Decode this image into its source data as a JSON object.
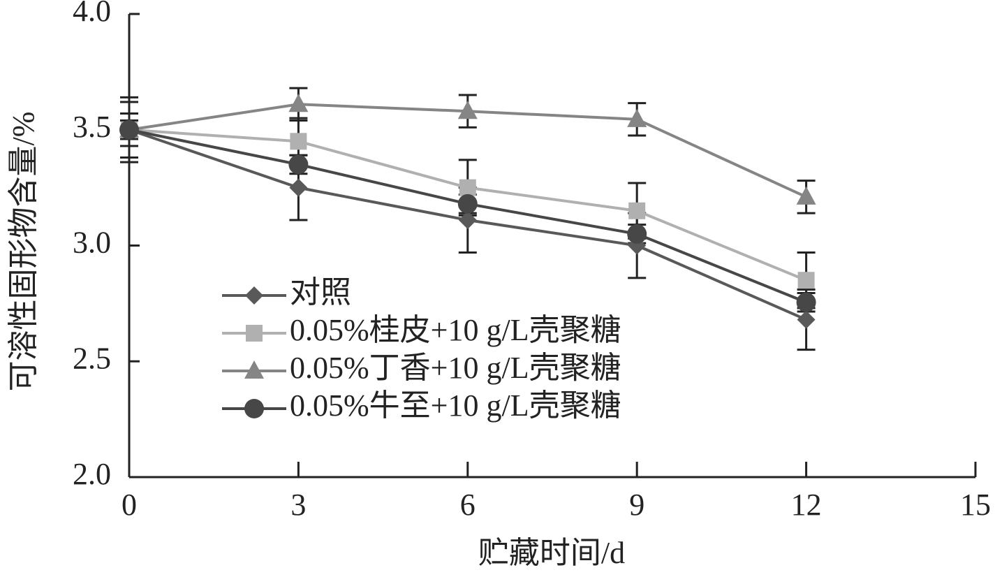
{
  "chart_data": {
    "type": "line",
    "x_label": "贮藏时间/d",
    "y_label": "可溶性固形物含量/%",
    "x": [
      0,
      3,
      6,
      9,
      12
    ],
    "xlim": [
      0,
      15
    ],
    "xticks": [
      0,
      3,
      6,
      9,
      12,
      15
    ],
    "ylim": [
      2.0,
      4.0
    ],
    "yticks": [
      {
        "value": 2,
        "label": "2.0"
      },
      2.5,
      {
        "value": 3,
        "label": "3.0"
      },
      3.5,
      {
        "value": 4,
        "label": "4.0"
      }
    ],
    "legend": "center-left",
    "series": [
      {
        "name": "对照",
        "color": "#595959",
        "marker": "diamond",
        "values": [
          3.5,
          3.25,
          3.11,
          3.0,
          2.68
        ],
        "errors": [
          0.14,
          0.14,
          0.14,
          0.14,
          0.13
        ]
      },
      {
        "name": "0.05%桂皮+10 g/L壳聚糖",
        "color": "#b0b0b0",
        "marker": "square",
        "values": [
          3.5,
          3.45,
          3.25,
          3.15,
          2.85
        ],
        "errors": [
          0.12,
          0.1,
          0.12,
          0.12,
          0.12
        ]
      },
      {
        "name": "0.05%丁香+10 g/L壳聚糖",
        "color": "#858585",
        "marker": "triangle",
        "values": [
          3.5,
          3.61,
          3.58,
          3.545,
          3.21
        ],
        "errors": [
          0.07,
          0.07,
          0.07,
          0.07,
          0.07
        ]
      },
      {
        "name": "0.05%牛至+10 g/L壳聚糖",
        "color": "#474747",
        "marker": "circle",
        "values": [
          3.5,
          3.35,
          3.18,
          3.05,
          2.755
        ],
        "errors": [
          0.04,
          0.04,
          0.04,
          0.04,
          0.04
        ]
      }
    ]
  }
}
